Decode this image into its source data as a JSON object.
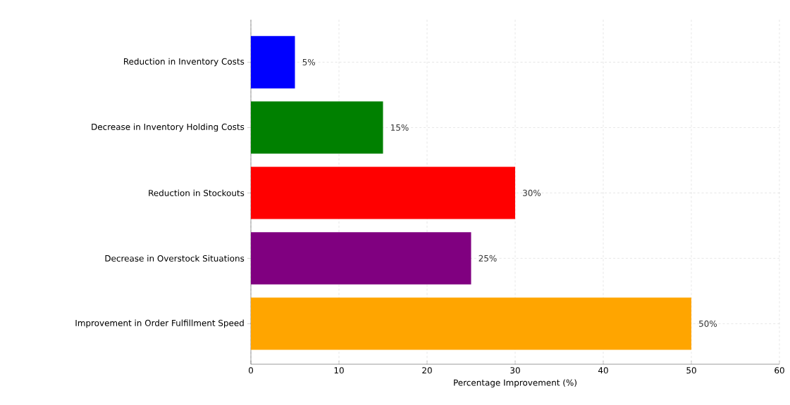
{
  "chart_data": {
    "type": "bar",
    "orientation": "horizontal",
    "categories": [
      "Reduction in Inventory Costs",
      "Decrease in Inventory Holding Costs",
      "Reduction in Stockouts",
      "Decrease in Overstock Situations",
      "Improvement in Order Fulfillment Speed"
    ],
    "values": [
      5,
      15,
      30,
      25,
      50
    ],
    "colors": [
      "#0000ff",
      "#008000",
      "#ff0000",
      "#800080",
      "#ffa500"
    ],
    "value_labels": [
      "5%",
      "15%",
      "30%",
      "25%",
      "50%"
    ],
    "xlabel": "Percentage Improvement (%)",
    "xlim": [
      0,
      60
    ],
    "xticks": [
      0,
      10,
      20,
      30,
      40,
      50,
      60
    ],
    "grid": true
  }
}
